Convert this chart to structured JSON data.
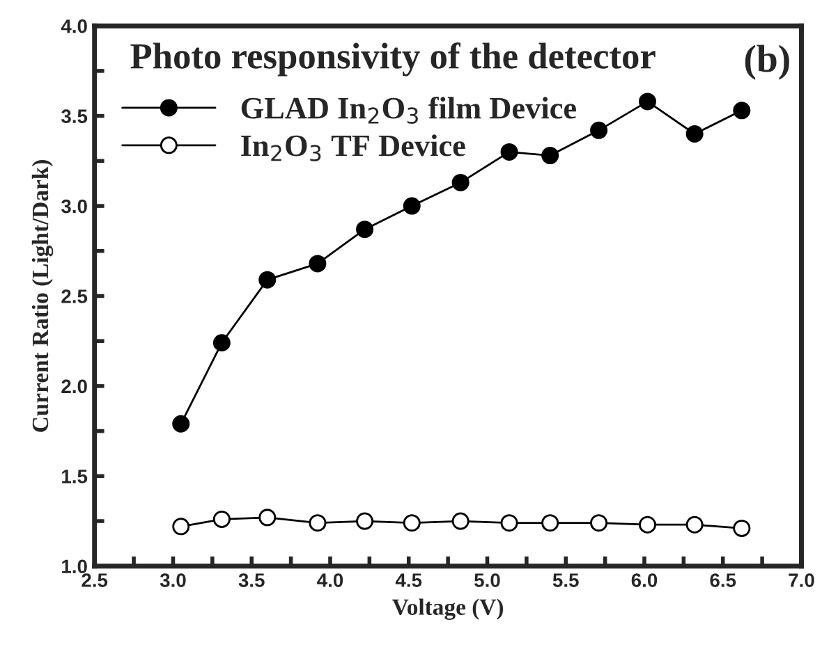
{
  "chart_data": {
    "type": "line",
    "title": "Photo responsivity of the detector",
    "xlabel": "Voltage (V)",
    "ylabel": "Current Ratio (Light/Dark)",
    "annotations": [
      "(b)"
    ],
    "x": [
      3.05,
      3.31,
      3.6,
      3.92,
      4.22,
      4.52,
      4.83,
      5.14,
      5.4,
      5.71,
      6.02,
      6.32,
      6.62
    ],
    "series": [
      {
        "name": "GLAD In$_{2}$O$_{3}$ film Device",
        "color": "#000000",
        "values": [
          1.79,
          2.24,
          2.59,
          2.68,
          2.87,
          3.0,
          3.13,
          3.3,
          3.28,
          3.42,
          3.58,
          3.4,
          3.53
        ]
      },
      {
        "name": "In$_{2}$O$_{3}$ TF Device",
        "color": "#000000",
        "values": [
          1.22,
          1.26,
          1.27,
          1.24,
          1.25,
          1.24,
          1.25,
          1.24,
          1.24,
          1.24,
          1.23,
          1.23,
          1.21
        ]
      }
    ],
    "xlim": [
      2.5,
      7.0
    ],
    "ylim": [
      1.0,
      4.0
    ],
    "xticks": [
      2.5,
      {
        "value": 2.75,
        "label": null
      },
      {
        "value": 3,
        "label": "3.0"
      },
      {
        "value": 3.25,
        "label": null
      },
      3.5,
      {
        "value": 3.75,
        "label": null
      },
      {
        "value": 4,
        "label": "4.0"
      },
      {
        "value": 4.25,
        "label": null
      },
      4.5,
      {
        "value": 4.75,
        "label": null
      },
      {
        "value": 5,
        "label": "5.0"
      },
      {
        "value": 5.25,
        "label": null
      },
      5.5,
      {
        "value": 5.75,
        "label": null
      },
      {
        "value": 6,
        "label": "6.0"
      },
      {
        "value": 6.25,
        "label": null
      },
      6.5,
      {
        "value": 6.75,
        "label": null
      },
      {
        "value": 7,
        "label": "7.0"
      }
    ],
    "yticks": [
      {
        "value": 1,
        "label": "1.0"
      },
      {
        "value": 1.25,
        "label": null
      },
      1.5,
      {
        "value": 1.75,
        "label": null
      },
      {
        "value": 2,
        "label": "2.0"
      },
      {
        "value": 2.25,
        "label": null
      },
      2.5,
      {
        "value": 2.75,
        "label": null
      },
      {
        "value": 3,
        "label": "3.0"
      },
      {
        "value": 3.25,
        "label": null
      },
      3.5,
      {
        "value": 3.75,
        "label": null
      },
      {
        "value": 4,
        "label": "4.0"
      }
    ],
    "marker": "circle",
    "grid": false,
    "legend": "top left",
    "line_style": "solid"
  }
}
